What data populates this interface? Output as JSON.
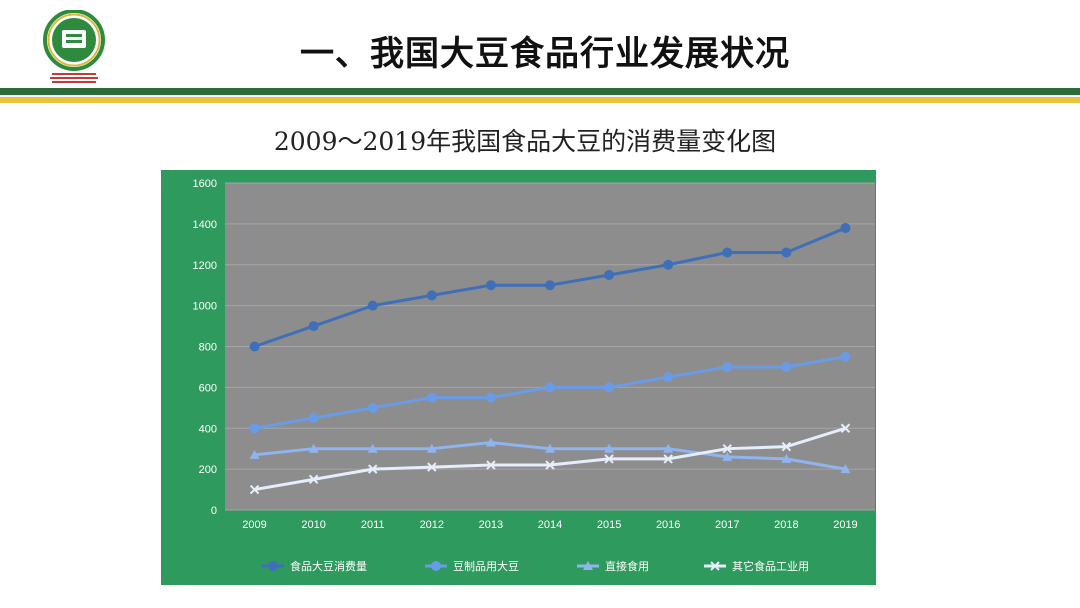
{
  "slide": {
    "title": "一、我国大豆食品行业发展状况",
    "logo_text": "Soy Protein Committee of China Soybean Food Industry Association"
  },
  "colors": {
    "band_green": "#2e6b3b",
    "band_yellow": "#e4c53b",
    "chart_frame": "#2f9a5e",
    "plot_bg": "#8d8d8d"
  },
  "chart_data": {
    "type": "line",
    "title": "2009～2019年我国食品大豆的消费量变化图",
    "xlabel": "",
    "ylabel": "",
    "categories": [
      "2009",
      "2010",
      "2011",
      "2012",
      "2013",
      "2014",
      "2015",
      "2016",
      "2017",
      "2018",
      "2019"
    ],
    "yticks": [
      0,
      200,
      400,
      600,
      800,
      1000,
      1200,
      1400,
      1600
    ],
    "ylim": [
      0,
      1600
    ],
    "grid": true,
    "legend_position": "bottom",
    "series": [
      {
        "name": "食品大豆消费量",
        "color": "#3f6fb8",
        "marker": "circle",
        "values": [
          800,
          900,
          1000,
          1050,
          1100,
          1100,
          1150,
          1200,
          1260,
          1260,
          1380
        ]
      },
      {
        "name": "豆制品用大豆",
        "color": "#6a9be6",
        "marker": "circle",
        "values": [
          400,
          450,
          500,
          550,
          550,
          600,
          600,
          650,
          700,
          700,
          750
        ]
      },
      {
        "name": "直接食用",
        "color": "#8fb4f0",
        "marker": "triangle",
        "values": [
          270,
          300,
          300,
          300,
          330,
          300,
          300,
          300,
          260,
          250,
          200
        ]
      },
      {
        "name": "其它食品工业用",
        "color": "#e6eefc",
        "marker": "x",
        "values": [
          100,
          150,
          200,
          210,
          220,
          220,
          250,
          250,
          300,
          310,
          400
        ]
      }
    ]
  }
}
